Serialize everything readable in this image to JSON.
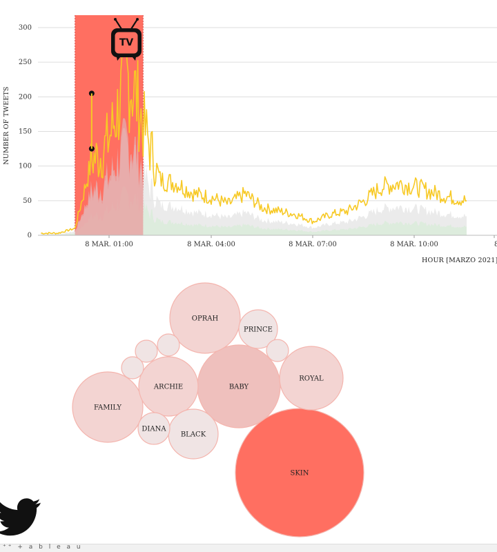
{
  "colors": {
    "band": "#ff6f61",
    "band_border": "#e8a6a0",
    "line": "#f7c925",
    "area_pink": "#e8a6a6",
    "area_gray": "#e6e6e6",
    "area_green": "#d9ecd9",
    "grid": "#dddddd",
    "bubble_light": "#f3d4d2",
    "bubble_mid": "#efc0bd",
    "bubble_pale": "#f0e4e4",
    "bubble_hot": "#ff6f61",
    "bubble_stroke": "#f4b4ad"
  },
  "icons": {
    "tv": "tv-icon",
    "twitter": "twitter-bird-icon"
  },
  "footer": {
    "label": "⁺⁺ + a b l e a u"
  },
  "chart_data": [
    {
      "type": "line",
      "ylabel": "NUMBER OF TWEETS",
      "xlabel": "HOUR [MARZO 2021]",
      "ylim": [
        0,
        300
      ],
      "yticks": [
        0,
        50,
        100,
        150,
        200,
        250,
        300
      ],
      "xticks": [
        "8 MAR. 01:00",
        "8 MAR. 04:00",
        "8 MAR. 07:00",
        "8 MAR. 10:00",
        "8"
      ],
      "grid": true,
      "highlight": {
        "label": "TV",
        "from": "8 MAR. 00:00",
        "to": "8 MAR. 02:00"
      },
      "markers": [
        {
          "x": "8 MAR. 00:30",
          "y": 205
        },
        {
          "x": "8 MAR. 00:30",
          "y": 125
        }
      ],
      "series": [
        {
          "x": [
            "7 MAR. 23:00",
            "7 MAR. 23:30",
            "8 MAR. 00:00",
            "8 MAR. 00:15",
            "8 MAR. 00:30",
            "8 MAR. 00:45",
            "8 MAR. 01:00",
            "8 MAR. 01:15",
            "8 MAR. 01:30",
            "8 MAR. 01:45",
            "8 MAR. 02:00",
            "8 MAR. 02:30",
            "8 MAR. 03:00",
            "8 MAR. 03:30",
            "8 MAR. 04:00",
            "8 MAR. 04:30",
            "8 MAR. 05:00",
            "8 MAR. 05:30",
            "8 MAR. 06:00",
            "8 MAR. 06:30",
            "8 MAR. 07:00",
            "8 MAR. 07:30",
            "8 MAR. 08:00",
            "8 MAR. 08:30",
            "8 MAR. 09:00",
            "8 MAR. 09:30",
            "8 MAR. 10:00",
            "8 MAR. 10:30",
            "8 MAR. 11:00",
            "8 MAR. 11:30"
          ],
          "values": [
            3,
            3,
            10,
            60,
            110,
            115,
            140,
            180,
            230,
            210,
            160,
            80,
            75,
            60,
            55,
            45,
            60,
            40,
            35,
            30,
            20,
            30,
            35,
            50,
            70,
            75,
            70,
            62,
            55,
            50
          ]
        }
      ]
    },
    {
      "type": "bubble",
      "bubbles": [
        {
          "label": "SKIN",
          "value": 100
        },
        {
          "label": "BABY",
          "value": 42
        },
        {
          "label": "OPRAH",
          "value": 30
        },
        {
          "label": "FAMILY",
          "value": 30
        },
        {
          "label": "ROYAL",
          "value": 24
        },
        {
          "label": "ARCHIE",
          "value": 21
        },
        {
          "label": "BLACK",
          "value": 15
        },
        {
          "label": "PRINCE",
          "value": 9
        },
        {
          "label": "DIANA",
          "value": 6
        },
        {
          "label": "",
          "value": 3
        },
        {
          "label": "",
          "value": 3
        },
        {
          "label": "",
          "value": 3
        },
        {
          "label": "",
          "value": 3
        }
      ]
    }
  ]
}
